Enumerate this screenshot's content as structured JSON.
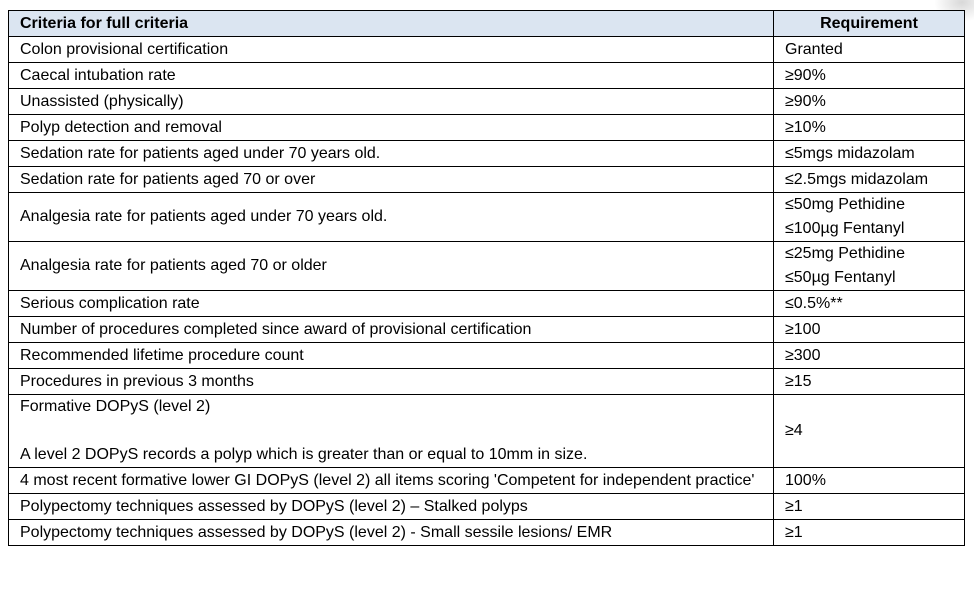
{
  "header": {
    "criteria": "Criteria for full criteria",
    "requirement": "Requirement"
  },
  "rows": [
    {
      "criteria": [
        "Colon provisional certification"
      ],
      "requirement": [
        "Granted"
      ]
    },
    {
      "criteria": [
        "Caecal intubation rate"
      ],
      "requirement": [
        "≥90%"
      ]
    },
    {
      "criteria": [
        "Unassisted (physically)"
      ],
      "requirement": [
        "≥90%"
      ]
    },
    {
      "criteria": [
        "Polyp detection and removal"
      ],
      "requirement": [
        "≥10%"
      ]
    },
    {
      "criteria": [
        "Sedation rate for patients aged under 70 years old."
      ],
      "requirement": [
        "≤5mgs midazolam"
      ]
    },
    {
      "criteria": [
        "Sedation rate for patients aged 70 or over"
      ],
      "requirement": [
        "≤2.5mgs midazolam"
      ]
    },
    {
      "criteria": [
        "Analgesia rate for patients aged under 70 years old."
      ],
      "requirement": [
        "≤50mg Pethidine",
        "≤100µg Fentanyl"
      ]
    },
    {
      "criteria": [
        "Analgesia rate for patients aged 70 or older"
      ],
      "requirement": [
        "≤25mg Pethidine",
        "≤50µg Fentanyl"
      ]
    },
    {
      "criteria": [
        "Serious complication rate"
      ],
      "requirement": [
        "≤0.5%**"
      ]
    },
    {
      "criteria": [
        "Number of procedures completed since award of provisional certification"
      ],
      "requirement": [
        "≥100"
      ]
    },
    {
      "criteria": [
        "Recommended lifetime procedure count"
      ],
      "requirement": [
        "≥300"
      ]
    },
    {
      "criteria": [
        "Procedures in previous 3 months"
      ],
      "requirement": [
        "≥15"
      ]
    },
    {
      "criteria": [
        "Formative DOPyS (level 2)",
        "",
        "A level 2 DOPyS records a polyp which is greater than or equal to 10mm in size."
      ],
      "requirement": [
        "≥4"
      ]
    },
    {
      "criteria": [
        "4 most recent formative lower GI DOPyS (level 2) all items scoring 'Competent for independent practice'"
      ],
      "requirement": [
        "100%"
      ]
    },
    {
      "criteria": [
        "Polypectomy techniques assessed by DOPyS (level 2) – Stalked polyps"
      ],
      "requirement": [
        "≥1"
      ]
    },
    {
      "criteria": [
        "Polypectomy techniques assessed by DOPyS (level 2) - Small sessile lesions/ EMR"
      ],
      "requirement": [
        "≥1"
      ]
    }
  ],
  "colors": {
    "header_bg": "#dbe5f1",
    "border": "#000000"
  }
}
